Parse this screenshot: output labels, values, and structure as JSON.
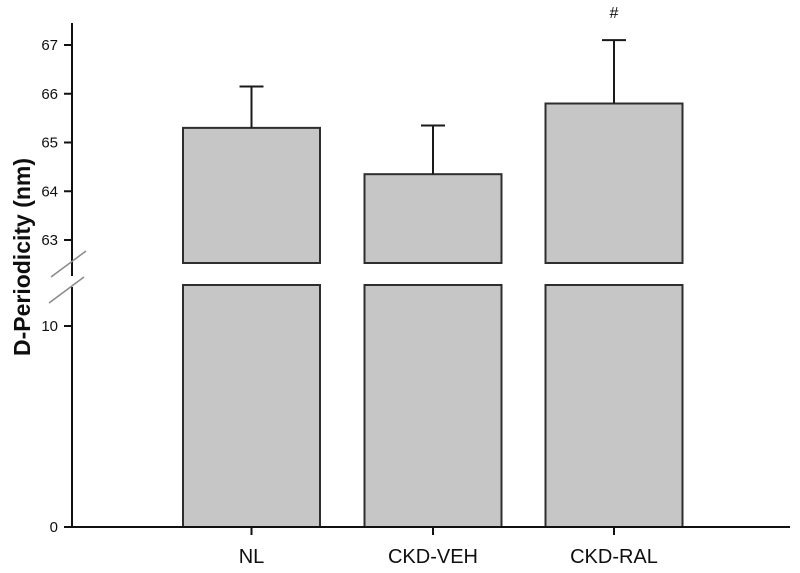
{
  "figure": {
    "ylabel": "D-Periodicity (nm)"
  },
  "chart_data": {
    "type": "bar",
    "title": "",
    "xlabel": "",
    "ylabel": "D-Periodicity (nm)",
    "categories": [
      "NL",
      "CKD-VEH",
      "CKD-RAL"
    ],
    "values": [
      65.3,
      64.35,
      65.8
    ],
    "errors_upper": [
      0.85,
      1.0,
      1.3
    ],
    "annotations": [
      "",
      "",
      "#"
    ],
    "axis_break": true,
    "upper_axis": {
      "ticks": [
        67,
        66,
        65,
        64,
        63
      ],
      "range_shown": [
        62.6,
        67.5
      ]
    },
    "lower_axis": {
      "ticks": [
        10,
        0
      ],
      "range_shown": [
        0,
        12
      ]
    },
    "legend": "none",
    "grid": false,
    "colors": {
      "bar_fill": "#c6c6c6",
      "bar_border": "#2e2e2e",
      "axis": "#111111",
      "error_bar": "#1a1a1a",
      "break_slash": "#8a8a8a"
    }
  }
}
